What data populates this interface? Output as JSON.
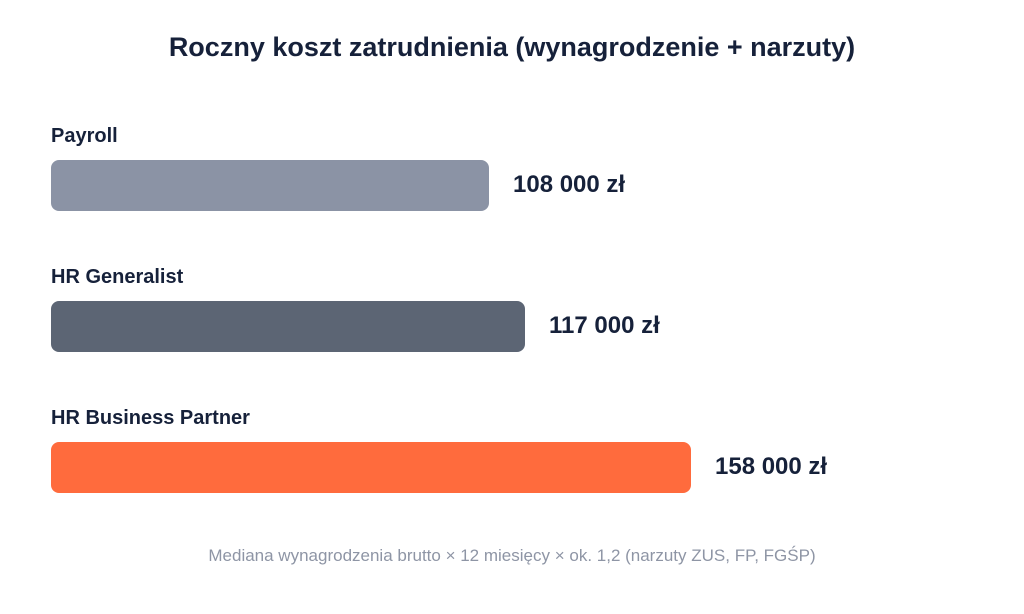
{
  "chart_data": {
    "type": "bar",
    "orientation": "horizontal",
    "title": "Roczny koszt zatrudnienia (wynagrodzenie + narzuty)",
    "categories": [
      "Payroll",
      "HR Generalist",
      "HR Business Partner"
    ],
    "values": [
      108000,
      117000,
      158000
    ],
    "value_labels": [
      "108 000 zł",
      "117 000 zł",
      "158 000 zł"
    ],
    "colors": [
      "#8b93a5",
      "#5c6574",
      "#ff6b3d"
    ],
    "xlim": [
      0,
      232000
    ],
    "grid": false,
    "legend": false,
    "footnote": "Mediana wynagrodzenia brutto × 12 miesięcy × ok. 1,2 (narzuty ZUS, FP, FGŚP)"
  }
}
